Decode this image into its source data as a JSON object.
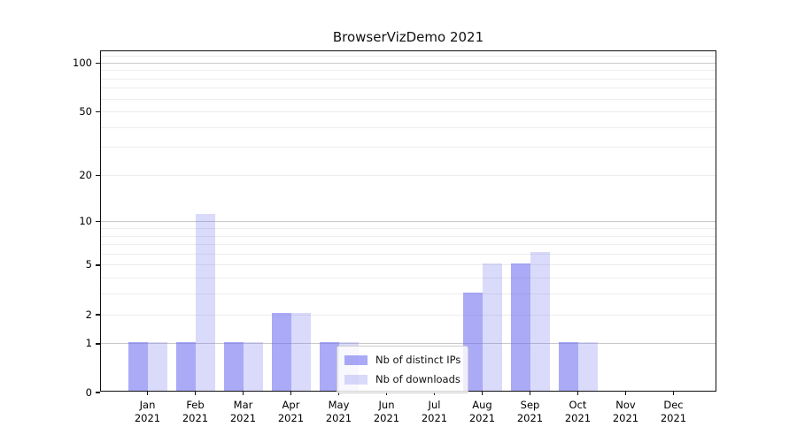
{
  "figure": {
    "title": "BrowserVizDemo 2021"
  },
  "chart_data": {
    "type": "bar",
    "title": "BrowserVizDemo 2021",
    "grid": true,
    "categories": [
      {
        "label": "Jan",
        "sublabel": "2021"
      },
      {
        "label": "Feb",
        "sublabel": "2021"
      },
      {
        "label": "Mar",
        "sublabel": "2021"
      },
      {
        "label": "Apr",
        "sublabel": "2021"
      },
      {
        "label": "May",
        "sublabel": "2021"
      },
      {
        "label": "Jun",
        "sublabel": "2021"
      },
      {
        "label": "Jul",
        "sublabel": "2021"
      },
      {
        "label": "Aug",
        "sublabel": "2021"
      },
      {
        "label": "Sep",
        "sublabel": "2021"
      },
      {
        "label": "Oct",
        "sublabel": "2021"
      },
      {
        "label": "Nov",
        "sublabel": "2021"
      },
      {
        "label": "Dec",
        "sublabel": "2021"
      }
    ],
    "series": [
      {
        "name": "Nb of distinct IPs",
        "color": "#6c6cf0",
        "alpha": 0.58,
        "values": [
          1,
          1,
          1,
          2,
          1,
          0,
          0,
          3,
          5,
          1,
          0,
          0
        ]
      },
      {
        "name": "Nb of downloads",
        "color": "#6c6cf0",
        "alpha": 0.25,
        "values": [
          1,
          11,
          1,
          2,
          1,
          0,
          0,
          5,
          6,
          1,
          0,
          0
        ]
      }
    ],
    "xlabel": "",
    "ylabel": "",
    "y_axis": {
      "scale": "log10(1+x)",
      "tick_values": [
        0,
        1,
        2,
        5,
        10,
        20,
        50,
        100
      ],
      "tick_labels": [
        "0",
        "1",
        "2",
        "5",
        "10",
        "20",
        "50",
        "100"
      ],
      "range": [
        0,
        118
      ],
      "major_gridlines": [
        1,
        10,
        100
      ],
      "minor_gridlines": [
        2,
        3,
        4,
        5,
        6,
        7,
        8,
        9,
        20,
        30,
        40,
        50,
        60,
        70,
        80,
        90,
        110
      ]
    },
    "legend": {
      "position": "inside lower center",
      "entries": [
        "Nb of distinct IPs",
        "Nb of downloads"
      ]
    },
    "colors": {
      "grid_major": "#c8c8c8",
      "grid_minor": "#ececec",
      "axis": "#111111",
      "legend_border": "#cccccc",
      "background": "#ffffff"
    }
  }
}
